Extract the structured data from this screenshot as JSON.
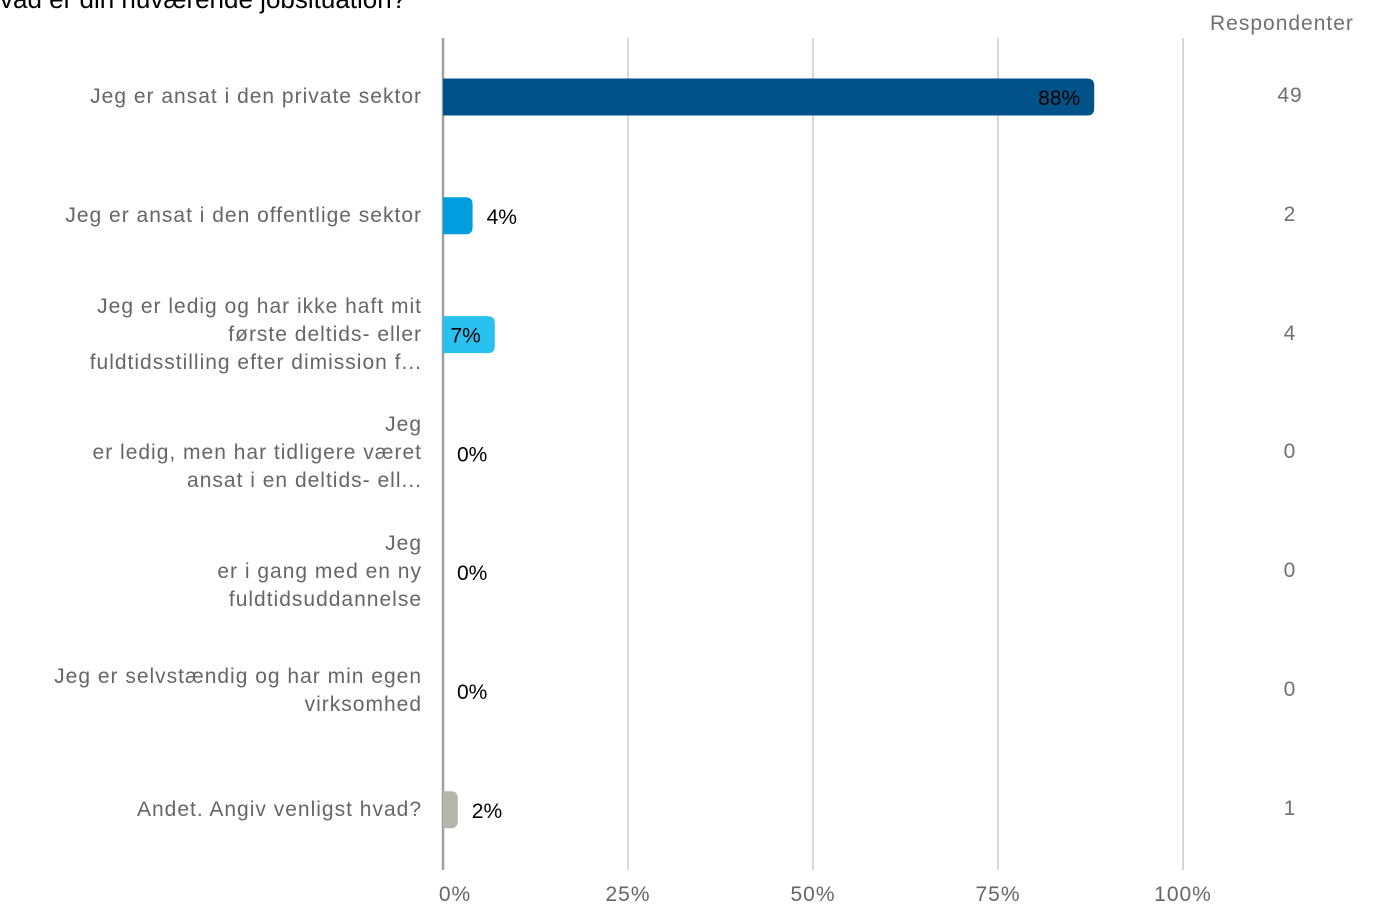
{
  "title": "vad er din nuværende jobsituation?",
  "respondents_header": "Respondenter",
  "colors": {
    "grid": "#b0b0b0",
    "axis": "#a0a0a0",
    "text_label": "#666666",
    "value_label": "#000000"
  },
  "chart_data": {
    "type": "bar",
    "orientation": "horizontal",
    "categories": [
      [
        "Jeg er ansat i den private sektor"
      ],
      [
        "Jeg er ansat i den offentlige sektor"
      ],
      [
        "Jeg er ledig og har ikke haft mit",
        "første deltids- eller",
        "fuldtidsstilling efter dimission f..."
      ],
      [
        "Jeg",
        "er ledig, men har tidligere været",
        "ansat i en deltids- ell..."
      ],
      [
        "Jeg",
        "er i gang med en ny",
        "fuldtidsuddannelse"
      ],
      [
        "Jeg er selvstændig og har min egen",
        "virksomhed"
      ],
      [
        "Andet. Angiv venligst hvad?"
      ]
    ],
    "values": [
      88,
      4,
      7,
      0,
      0,
      0,
      2
    ],
    "value_labels": [
      "88%",
      "4%",
      "7%",
      "0%",
      "0%",
      "0%",
      "2%"
    ],
    "respondents": [
      "49",
      "2",
      "4",
      "0",
      "0",
      "0",
      "1"
    ],
    "bar_colors": [
      "#005288",
      "#009ddf",
      "#29c2f0",
      "#29c2f0",
      "#29c2f0",
      "#29c2f0",
      "#b5b5a9"
    ],
    "xticks": [
      "0%",
      "25%",
      "50%",
      "75%",
      "100%"
    ],
    "xtick_values": [
      0,
      25,
      50,
      75,
      100
    ],
    "xlim": [
      0,
      100
    ],
    "grid": true
  }
}
